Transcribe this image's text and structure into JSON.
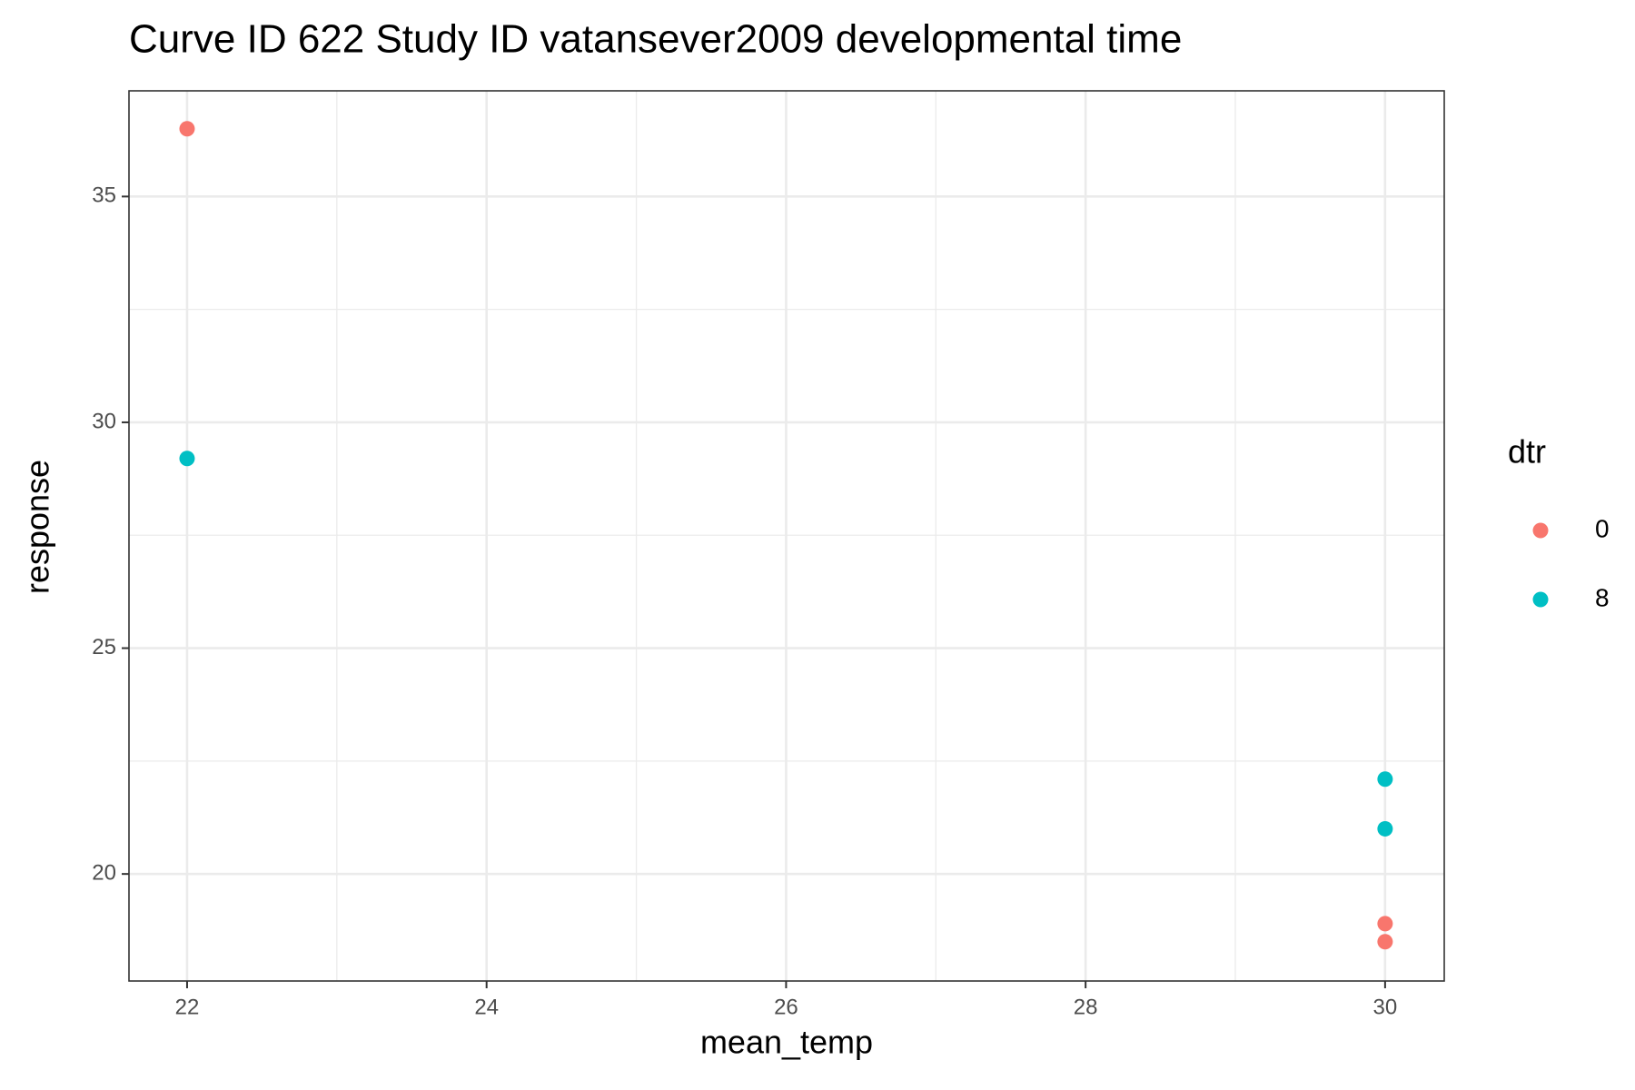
{
  "chart_data": {
    "type": "scatter",
    "title": "Curve ID 622 Study ID vatansever2009 developmental time",
    "x_label": "mean_temp",
    "y_label": "response",
    "legend_title": "dtr",
    "legend_position": "right",
    "xlim": [
      21.612,
      30.395
    ],
    "ylim": [
      17.63,
      37.34
    ],
    "xticks": [
      22,
      24,
      26,
      28,
      30
    ],
    "yticks": [
      20,
      25,
      30,
      35
    ],
    "x_minor_grid": [
      23,
      25,
      27,
      29
    ],
    "y_minor_grid": [
      22.5,
      27.5,
      32.5
    ],
    "grid": true,
    "series": [
      {
        "name": "0",
        "color": "#F8766D",
        "x": [
          22,
          30,
          30
        ],
        "values": [
          36.5,
          18.9,
          18.5
        ]
      },
      {
        "name": "8",
        "color": "#00BFC4",
        "x": [
          22,
          30,
          30
        ],
        "values": [
          29.2,
          22.1,
          21.0
        ]
      }
    ]
  }
}
